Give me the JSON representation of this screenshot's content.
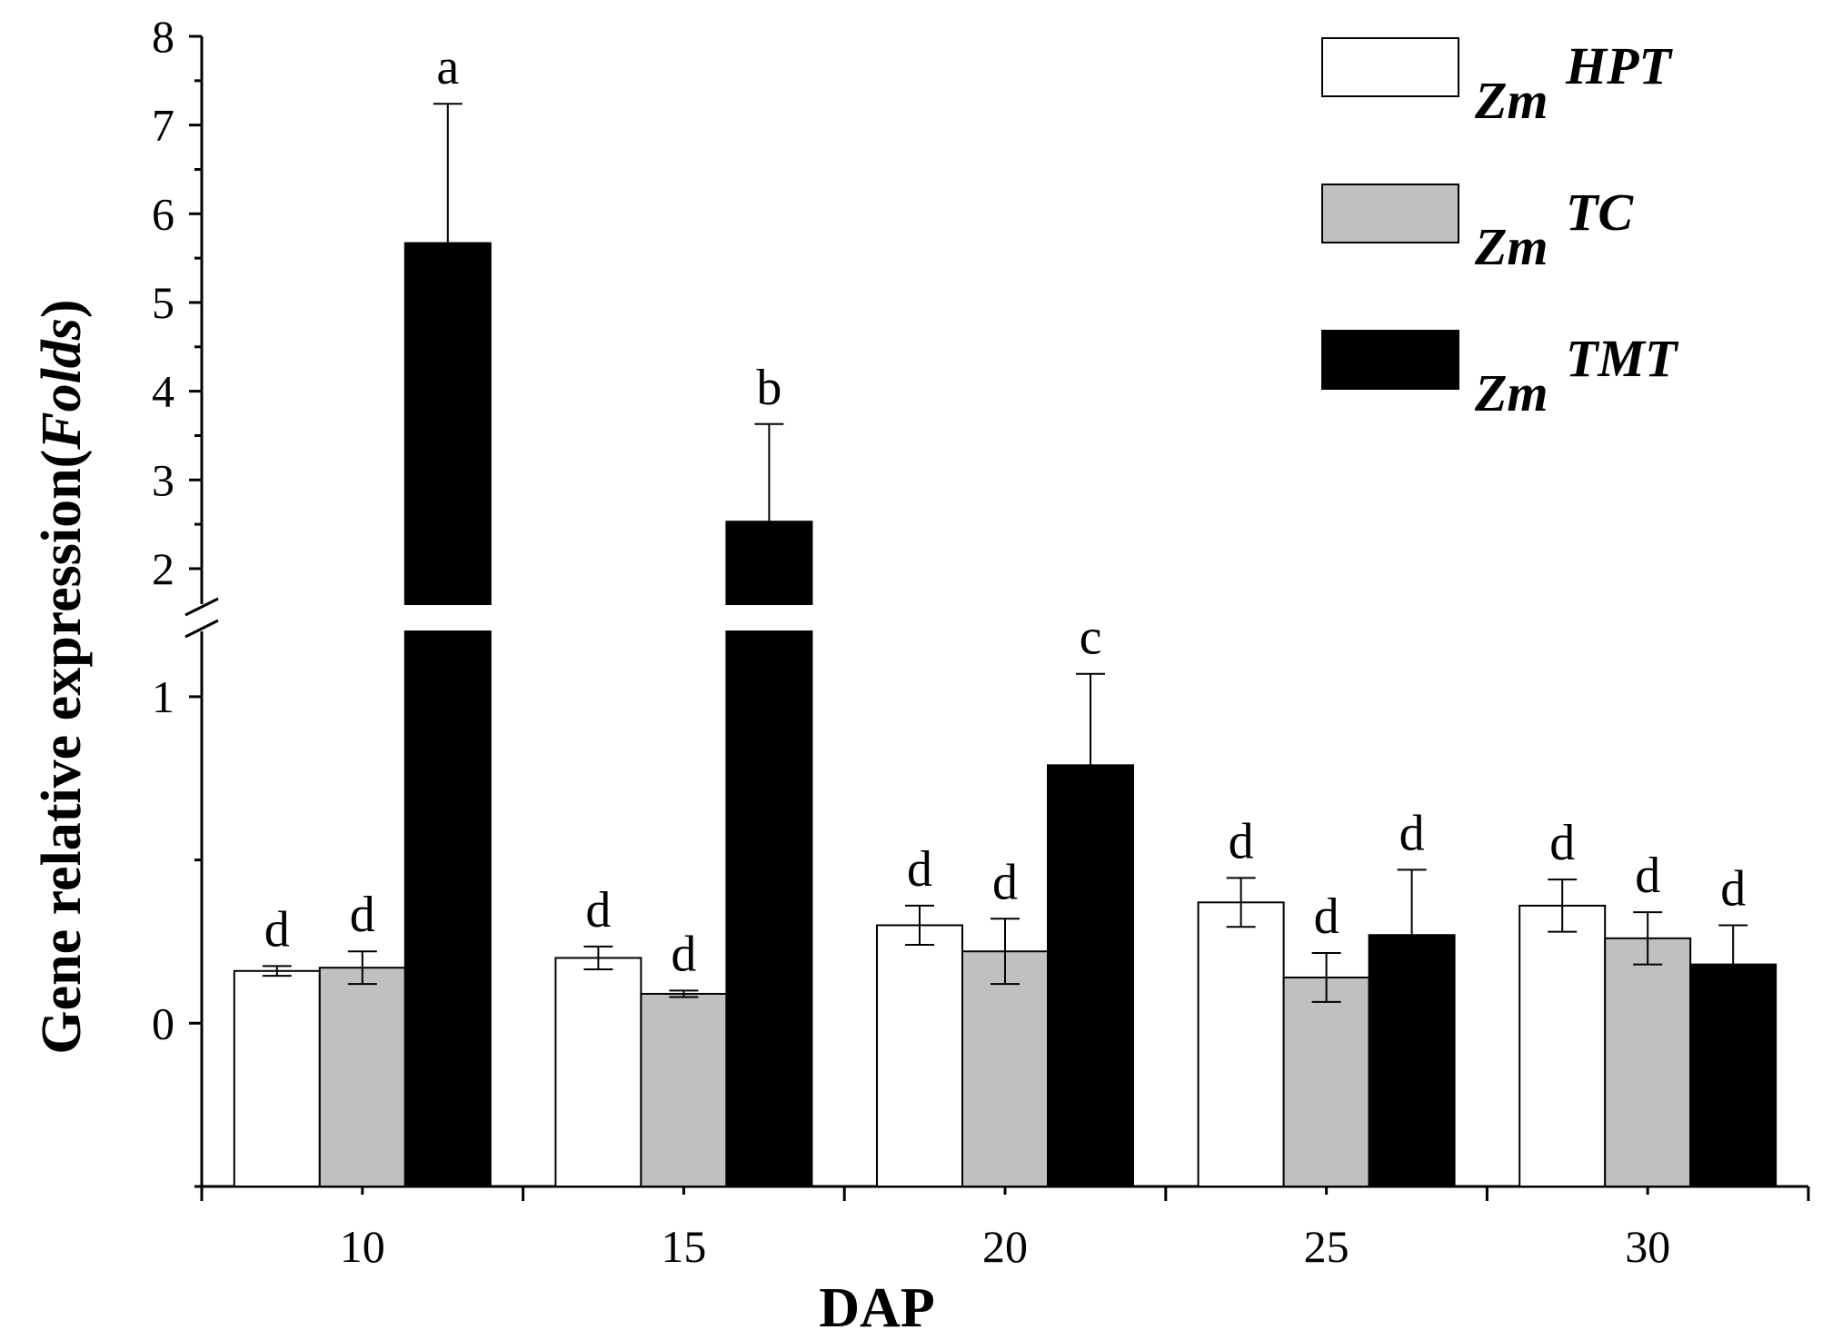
{
  "chart_data": {
    "type": "bar",
    "title": "",
    "xlabel": "DAP",
    "ylabel_prefix": "Gene relative expression(",
    "ylabel_italic": "Folds",
    "ylabel_suffix": ")",
    "categories": [
      "10",
      "15",
      "20",
      "25",
      "30"
    ],
    "series": [
      {
        "name": "HPT",
        "legend_prefix": "Zm",
        "legend_name": "HPT",
        "color": "#ffffff",
        "values": [
          0.16,
          0.2,
          0.3,
          0.37,
          0.36
        ],
        "errors": [
          0.015,
          0.035,
          0.06,
          0.075,
          0.08
        ],
        "labels": [
          "d",
          "d",
          "d",
          "d",
          "d"
        ]
      },
      {
        "name": "TC",
        "legend_prefix": "Zm",
        "legend_name": "TC",
        "color": "#c0c0c0",
        "values": [
          0.17,
          0.09,
          0.22,
          0.14,
          0.26
        ],
        "errors": [
          0.05,
          0.01,
          0.1,
          0.075,
          0.08
        ],
        "labels": [
          "d",
          "d",
          "d",
          "d",
          "d"
        ]
      },
      {
        "name": "TMT",
        "legend_prefix": "Zm",
        "legend_name": "TMT",
        "color": "#000000",
        "values": [
          5.67,
          2.53,
          0.79,
          0.27,
          0.18
        ],
        "errors": [
          1.57,
          1.1,
          0.28,
          0.2,
          0.12
        ],
        "labels": [
          "a",
          "b",
          "c",
          "d",
          "d"
        ]
      }
    ],
    "y_axis": {
      "type": "broken",
      "lower_segment": {
        "range": [
          -0.5,
          1.2
        ],
        "ticks": [
          0,
          1
        ],
        "tick_labels": [
          "0",
          "1"
        ]
      },
      "upper_segment": {
        "range": [
          1.6,
          8
        ],
        "ticks": [
          2,
          3,
          4,
          5,
          6,
          7,
          8
        ],
        "tick_labels": [
          "2",
          "3",
          "4",
          "5",
          "6",
          "7",
          "8"
        ]
      }
    },
    "grid": false,
    "legend_position": "top-right"
  }
}
